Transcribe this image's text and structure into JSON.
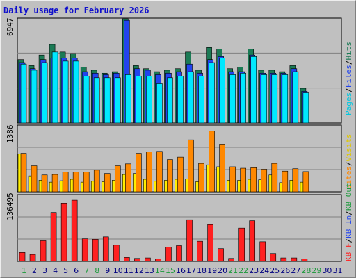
{
  "title": "Daily usage for February 2026",
  "colors": {
    "background": "#c0c0c0",
    "pages": "#00e8ff",
    "files": "#2244ee",
    "hits": "#1b7a55",
    "visits": "#ffee00",
    "sites": "#ff8800",
    "kb_in": "#ff2020",
    "title": "#1010cc",
    "weekend_label": "#1a9a3a",
    "weekday_label": "#000080"
  },
  "legend": {
    "top": [
      {
        "text": "Pages",
        "color": "#00c8e0"
      },
      {
        "text": "/",
        "color": "#000000"
      },
      {
        "text": "Files",
        "color": "#2244ee"
      },
      {
        "text": "/",
        "color": "#000000"
      },
      {
        "text": "Hits",
        "color": "#1b7a55"
      }
    ],
    "middle": [
      {
        "text": "Sites",
        "color": "#ff8800"
      },
      {
        "text": "/",
        "color": "#000000"
      },
      {
        "text": "Visits",
        "color": "#e0c800"
      }
    ],
    "bottom": [
      {
        "text": "KB F",
        "color": "#ff2020"
      },
      {
        "text": "/",
        "color": "#000000"
      },
      {
        "text": "KB In",
        "color": "#2244ee"
      },
      {
        "text": "/",
        "color": "#000000"
      },
      {
        "text": "KB Out",
        "color": "#1a9a3a"
      }
    ]
  },
  "chart_data": [
    {
      "type": "bar",
      "panel": "top",
      "ymax_label": "6947",
      "ylim": [
        0,
        6947
      ],
      "series": [
        {
          "name": "Hits",
          "values": [
            4200,
            3800,
            4500,
            5200,
            4700,
            4600,
            3700,
            3500,
            3300,
            3400,
            6900,
            3800,
            3600,
            3400,
            3500,
            3600,
            4700,
            3500,
            5000,
            4900,
            3600,
            3700,
            4900,
            3500,
            3500,
            3400,
            3800,
            2300,
            0
          ]
        },
        {
          "name": "Files",
          "values": [
            4000,
            3600,
            4200,
            4300,
            4300,
            4300,
            3400,
            3300,
            3200,
            3300,
            6800,
            3600,
            3500,
            3200,
            3300,
            3400,
            3900,
            3300,
            4200,
            4400,
            3400,
            3400,
            4500,
            3300,
            3300,
            3300,
            3600,
            2100,
            0
          ]
        },
        {
          "name": "Pages",
          "values": [
            3900,
            3500,
            4000,
            4700,
            4100,
            4100,
            3100,
            3000,
            3000,
            3000,
            3200,
            3100,
            3100,
            2600,
            3000,
            3100,
            3400,
            3100,
            4000,
            4300,
            3200,
            3300,
            4400,
            3200,
            3200,
            3200,
            3400,
            2000,
            0
          ]
        }
      ]
    },
    {
      "type": "bar",
      "panel": "middle",
      "ymax_label": "1386",
      "ylim": [
        0,
        1386
      ],
      "series": [
        {
          "name": "Sites",
          "values": [
            800,
            540,
            350,
            360,
            410,
            410,
            410,
            450,
            380,
            540,
            580,
            800,
            830,
            840,
            670,
            720,
            1080,
            590,
            1260,
            990,
            520,
            490,
            500,
            470,
            590,
            430,
            480,
            420,
            0
          ]
        },
        {
          "name": "Visits",
          "values": [
            790,
            330,
            240,
            200,
            230,
            260,
            200,
            220,
            210,
            240,
            360,
            380,
            260,
            220,
            240,
            260,
            270,
            210,
            560,
            520,
            240,
            240,
            260,
            250,
            350,
            190,
            240,
            200,
            0
          ]
        }
      ]
    },
    {
      "type": "bar",
      "panel": "bottom",
      "ymax_label": "136495",
      "ylim": [
        0,
        136495
      ],
      "series": [
        {
          "name": "KB F",
          "values": [
            18000,
            14000,
            42000,
            100000,
            119000,
            125000,
            46000,
            45000,
            50000,
            33000,
            8000,
            6000,
            7000,
            5000,
            29000,
            32000,
            85000,
            41000,
            75000,
            26000,
            6000,
            68000,
            83000,
            40000,
            16000,
            7000,
            7000,
            5000,
            0
          ]
        }
      ]
    },
    {
      "type": "table",
      "panel": "x-axis",
      "days": [
        "1",
        "2",
        "3",
        "4",
        "5",
        "6",
        "7",
        "8",
        "9",
        "10",
        "11",
        "12",
        "13",
        "14",
        "15",
        "16",
        "17",
        "18",
        "19",
        "20",
        "21",
        "22",
        "23",
        "24",
        "25",
        "26",
        "27",
        "28",
        "29",
        "30",
        "31"
      ],
      "weekend_days": [
        1,
        7,
        8,
        14,
        15,
        21,
        22,
        28,
        29
      ]
    }
  ]
}
